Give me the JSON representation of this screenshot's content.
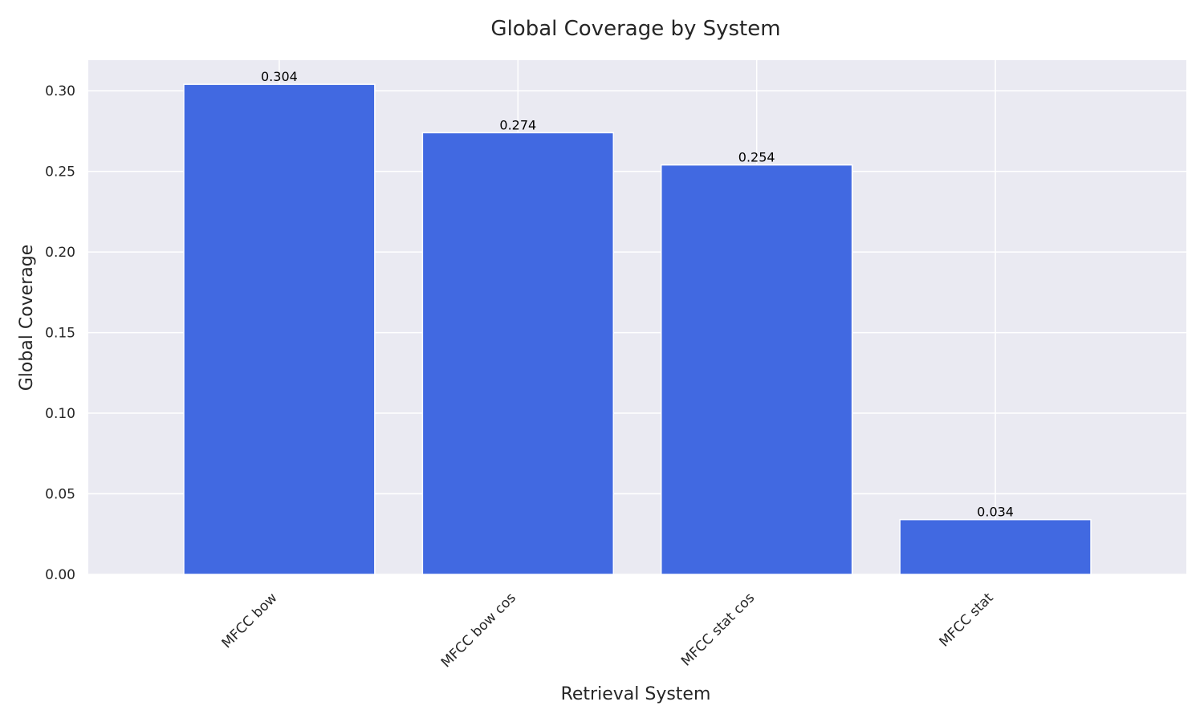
{
  "chart_data": {
    "type": "bar",
    "title": "Global Coverage by System",
    "xlabel": "Retrieval System",
    "ylabel": "Global Coverage",
    "categories": [
      "MFCC bow",
      "MFCC bow cos",
      "MFCC stat cos",
      "MFCC stat"
    ],
    "values": [
      0.304,
      0.274,
      0.254,
      0.034
    ],
    "value_labels": [
      "0.304",
      "0.274",
      "0.254",
      "0.034"
    ],
    "yticks": [
      0.0,
      0.05,
      0.1,
      0.15,
      0.2,
      0.25,
      0.3
    ],
    "ytick_labels": [
      "0.00",
      "0.05",
      "0.10",
      "0.15",
      "0.20",
      "0.25",
      "0.30"
    ],
    "ylim": [
      0,
      0.319
    ],
    "grid": true,
    "legend": "none",
    "colors": {
      "bar": "#4169e1",
      "plot_background": "#eaeaf2",
      "grid": "#ffffff"
    }
  }
}
